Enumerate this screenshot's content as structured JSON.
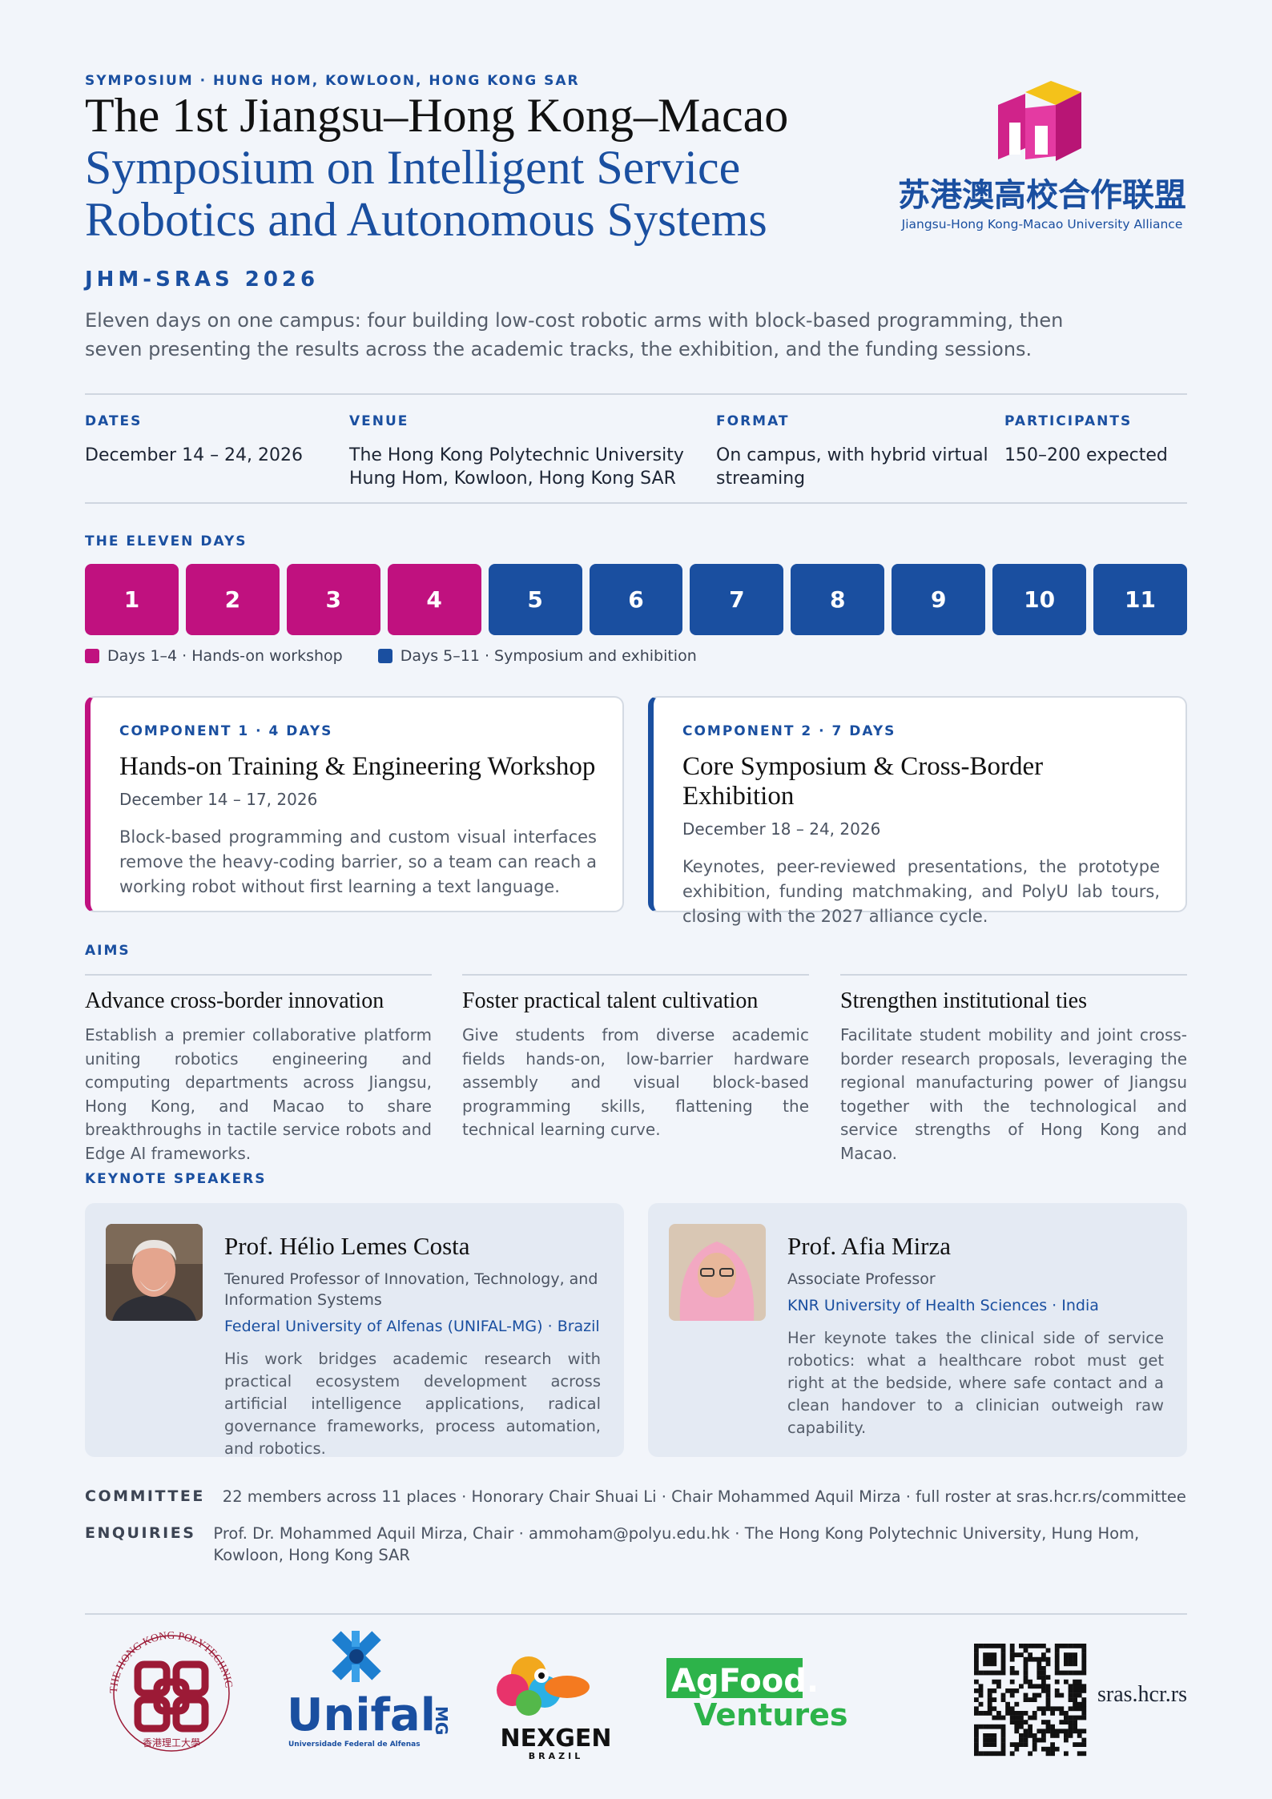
{
  "header": {
    "kicker": "SYMPOSIUM · HUNG HOM, KOWLOON, HONG KONG SAR",
    "title_lines": [
      "The 1st Jiangsu–Hong Kong–Macao",
      "Symposium on Intelligent Service",
      "Robotics and Autonomous Systems"
    ],
    "acronym": "JHM-SRAS 2026",
    "lede": "Eleven days on one campus: four building low-cost robotic arms with block-based programming, then seven presenting the results across the academic tracks, the exhibition, and the funding sessions.",
    "logo": {
      "chinese": "苏港澳高校合作联盟",
      "english": "Jiangsu-Hong Kong-Macao University Alliance"
    }
  },
  "meta": [
    {
      "label": "DATES",
      "lines": [
        "December 14 – 24, 2026"
      ]
    },
    {
      "label": "VENUE",
      "lines": [
        "The Hong Kong Polytechnic University",
        "Hung Hom, Kowloon, Hong Kong SAR"
      ]
    },
    {
      "label": "FORMAT",
      "lines": [
        "On campus, with hybrid virtual",
        "streaming"
      ]
    },
    {
      "label": "PARTICIPANTS",
      "lines": [
        "150–200 expected"
      ]
    }
  ],
  "days": {
    "heading": "THE ELEVEN DAYS",
    "workshop_days": [
      "1",
      "2",
      "3",
      "4"
    ],
    "symposium_days": [
      "5",
      "6",
      "7",
      "8",
      "9",
      "10",
      "11"
    ],
    "legend": [
      "Days 1–4 · Hands-on workshop",
      "Days 5–11 · Symposium and exhibition"
    ]
  },
  "components": [
    {
      "eyebrow": "COMPONENT 1 · 4 DAYS",
      "title": "Hands-on Training & Engineering Workshop",
      "dates": "December 14 – 17, 2026",
      "body": "Block-based programming and custom visual interfaces remove the heavy-coding barrier, so a team can reach a working robot without first learning a text language."
    },
    {
      "eyebrow": "COMPONENT 2 · 7 DAYS",
      "title": "Core Symposium & Cross-Border Exhibition",
      "dates": "December 18 – 24, 2026",
      "body": "Keynotes, peer-reviewed presentations, the prototype exhibition, funding matchmaking, and PolyU lab tours, closing with the 2027 alliance cycle."
    }
  ],
  "aims": {
    "heading": "AIMS",
    "items": [
      {
        "title": "Advance cross-border innovation",
        "body": "Establish a premier collaborative platform uniting robotics engineering and computing departments across Jiangsu, Hong Kong, and Macao to share breakthroughs in tactile service robots and Edge AI frameworks."
      },
      {
        "title": "Foster practical talent cultivation",
        "body": "Give students from diverse academic fields hands-on, low-barrier hardware assembly and visual block-based programming skills, flattening the technical learning curve."
      },
      {
        "title": "Strengthen institutional ties",
        "body": "Facilitate student mobility and joint cross-border research proposals, leveraging the regional manufacturing power of Jiangsu together with the technological and service strengths of Hong Kong and Macao."
      }
    ]
  },
  "speakers": {
    "heading": "KEYNOTE SPEAKERS",
    "items": [
      {
        "name": "Prof. Hélio Lemes Costa",
        "role": "Tenured Professor of Innovation, Technology, and Information Systems",
        "affiliation": "Federal University of Alfenas (UNIFAL-MG) · Brazil",
        "body": "His work bridges academic research with practical ecosystem development across artificial intelligence applications, radical governance frameworks, process automation, and robotics."
      },
      {
        "name": "Prof. Afia Mirza",
        "role": "Associate Professor",
        "affiliation": "KNR University of Health Sciences · India",
        "body": "Her keynote takes the clinical side of service robotics: what a healthcare robot must get right at the bedside, where safe contact and a clean handover to a clinician outweigh raw capability."
      }
    ]
  },
  "info": [
    {
      "label": "COMMITTEE",
      "text": "22 members across 11 places · Honorary Chair Shuai Li · Chair Mohammed Aquil Mirza · full roster at sras.hcr.rs/committee"
    },
    {
      "label": "ENQUIRIES",
      "text": "Prof. Dr. Mohammed Aquil Mirza, Chair · ammoham@polyu.edu.hk · The Hong Kong Polytechnic University, Hung Hom, Kowloon, Hong Kong SAR"
    }
  ],
  "partners": {
    "polyu": {
      "ring": "THE HONG KONG POLYTECHNIC UNIVERSITY",
      "chinese": "香港理工大學"
    },
    "unifal": {
      "name": "Unifal",
      "state": "MG",
      "full": "Universidade Federal de Alfenas"
    },
    "nexgen": {
      "name": "NEXGEN",
      "country": "BRAZIL"
    },
    "agfood": {
      "top": "AgFood.",
      "bottom": "Ventures"
    },
    "website": "sras.hcr.rs"
  }
}
